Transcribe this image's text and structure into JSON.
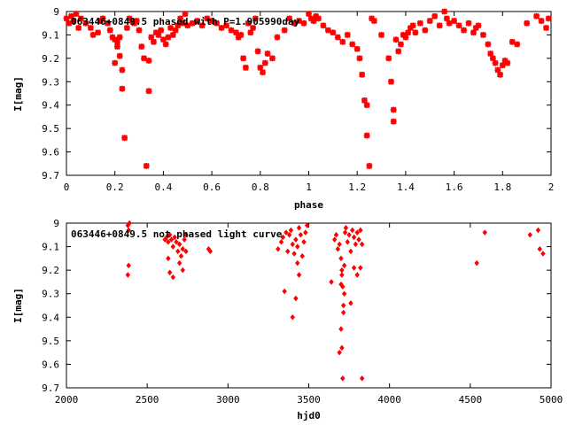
{
  "colors": {
    "points": "#ff0000",
    "axes": "#000000",
    "background": "#ffffff"
  },
  "chart_data": [
    {
      "type": "scatter",
      "title": "063446+0849.5 phased with P=1.905990day",
      "xlabel": "phase",
      "ylabel": "I[mag]",
      "xlim": [
        0,
        2
      ],
      "ylim": [
        9.7,
        9.0
      ],
      "xticks": [
        0,
        0.2,
        0.4,
        0.6,
        0.8,
        1,
        1.2,
        1.4,
        1.6,
        1.8,
        2
      ],
      "xtick_labels": [
        "0",
        "0.2",
        "0.4",
        "0.6",
        "0.8",
        "1",
        "1.2",
        "1.4",
        "1.6",
        "1.8",
        "2"
      ],
      "yticks": [
        9.0,
        9.1,
        9.2,
        9.3,
        9.4,
        9.5,
        9.6,
        9.7
      ],
      "ytick_labels": [
        "9",
        "9.1",
        "9.2",
        "9.3",
        "9.4",
        "9.5",
        "9.6",
        "9.7"
      ],
      "marker": "star",
      "x": [
        0.0,
        0.01,
        0.02,
        0.03,
        0.04,
        0.05,
        0.06,
        0.08,
        0.1,
        0.11,
        0.13,
        0.14,
        0.15,
        0.17,
        0.18,
        0.19,
        0.2,
        0.2,
        0.21,
        0.21,
        0.22,
        0.22,
        0.23,
        0.23,
        0.24,
        0.25,
        0.26,
        0.27,
        0.28,
        0.29,
        0.3,
        0.31,
        0.32,
        0.33,
        0.34,
        0.34,
        0.35,
        0.36,
        0.37,
        0.38,
        0.39,
        0.4,
        0.41,
        0.42,
        0.43,
        0.44,
        0.45,
        0.46,
        0.47,
        0.48,
        0.49,
        0.5,
        0.52,
        0.54,
        0.56,
        0.58,
        0.6,
        0.62,
        0.64,
        0.66,
        0.68,
        0.7,
        0.71,
        0.72,
        0.73,
        0.74,
        0.75,
        0.76,
        0.77,
        0.78,
        0.79,
        0.8,
        0.81,
        0.82,
        0.83,
        0.85,
        0.87,
        0.9,
        0.92,
        0.94,
        0.96,
        0.98,
        1.0,
        1.01,
        1.02,
        1.03,
        1.04,
        1.06,
        1.08,
        1.1,
        1.12,
        1.14,
        1.16,
        1.18,
        1.2,
        1.21,
        1.22,
        1.23,
        1.24,
        1.24,
        1.25,
        1.26,
        1.27,
        1.3,
        1.33,
        1.34,
        1.35,
        1.35,
        1.36,
        1.37,
        1.38,
        1.39,
        1.4,
        1.41,
        1.42,
        1.43,
        1.44,
        1.46,
        1.48,
        1.5,
        1.52,
        1.54,
        1.56,
        1.57,
        1.58,
        1.6,
        1.62,
        1.64,
        1.66,
        1.68,
        1.69,
        1.7,
        1.72,
        1.74,
        1.75,
        1.76,
        1.77,
        1.78,
        1.79,
        1.8,
        1.81,
        1.82,
        1.84,
        1.86,
        1.9,
        1.94,
        1.96,
        1.98,
        1.99
      ],
      "y": [
        9.03,
        9.05,
        9.02,
        9.04,
        9.01,
        9.07,
        9.03,
        9.05,
        9.07,
        9.1,
        9.09,
        9.04,
        9.03,
        9.05,
        9.08,
        9.11,
        9.12,
        9.22,
        9.13,
        9.15,
        9.11,
        9.19,
        9.25,
        9.33,
        9.54,
        9.07,
        9.03,
        9.04,
        9.05,
        9.04,
        9.08,
        9.15,
        9.2,
        9.66,
        9.21,
        9.34,
        9.11,
        9.13,
        9.09,
        9.1,
        9.08,
        9.12,
        9.14,
        9.11,
        9.07,
        9.1,
        9.08,
        9.06,
        9.03,
        9.05,
        9.01,
        9.06,
        9.05,
        9.04,
        9.06,
        9.03,
        9.04,
        9.05,
        9.07,
        9.06,
        9.08,
        9.09,
        9.11,
        9.1,
        9.2,
        9.24,
        9.05,
        9.09,
        9.07,
        9.03,
        9.17,
        9.24,
        9.26,
        9.22,
        9.18,
        9.2,
        9.11,
        9.08,
        9.03,
        9.05,
        9.04,
        9.05,
        9.01,
        9.03,
        9.04,
        9.02,
        9.03,
        9.06,
        9.08,
        9.09,
        9.11,
        9.13,
        9.1,
        9.14,
        9.16,
        9.2,
        9.27,
        9.38,
        9.4,
        9.53,
        9.66,
        9.03,
        9.04,
        9.1,
        9.2,
        9.3,
        9.42,
        9.47,
        9.12,
        9.17,
        9.14,
        9.1,
        9.11,
        9.09,
        9.07,
        9.06,
        9.09,
        9.05,
        9.08,
        9.04,
        9.02,
        9.06,
        9.0,
        9.03,
        9.05,
        9.04,
        9.06,
        9.08,
        9.05,
        9.09,
        9.07,
        9.06,
        9.1,
        9.14,
        9.18,
        9.2,
        9.22,
        9.25,
        9.27,
        9.23,
        9.21,
        9.22,
        9.13,
        9.14,
        9.05,
        9.02,
        9.04,
        9.07,
        9.03
      ],
      "points_name": "phased-point"
    },
    {
      "type": "scatter",
      "title": "063446+0849.5 not phased light curve",
      "xlabel": "hjd0",
      "ylabel": "I[mag]",
      "xlim": [
        2000,
        5000
      ],
      "ylim": [
        9.7,
        9.0
      ],
      "xticks": [
        2000,
        2500,
        3000,
        3500,
        4000,
        4500,
        5000
      ],
      "xtick_labels": [
        "2000",
        "2500",
        "3000",
        "3500",
        "4000",
        "4500",
        "5000"
      ],
      "yticks": [
        9.0,
        9.1,
        9.2,
        9.3,
        9.4,
        9.5,
        9.6,
        9.7
      ],
      "ytick_labels": [
        "9",
        "9.1",
        "9.2",
        "9.3",
        "9.4",
        "9.5",
        "9.6",
        "9.7"
      ],
      "marker": "diamond",
      "x": [
        2380,
        2385,
        2390,
        2385,
        2380,
        2610,
        2620,
        2630,
        2640,
        2650,
        2660,
        2670,
        2680,
        2690,
        2700,
        2710,
        2720,
        2730,
        2740,
        2630,
        2640,
        2660,
        2700,
        2720,
        2740,
        2880,
        2890,
        3310,
        3330,
        3340,
        3360,
        3370,
        3380,
        3390,
        3400,
        3410,
        3420,
        3430,
        3440,
        3450,
        3460,
        3470,
        3480,
        3490,
        3350,
        3420,
        3430,
        3440,
        3400,
        3640,
        3660,
        3670,
        3680,
        3690,
        3700,
        3705,
        3710,
        3715,
        3720,
        3725,
        3730,
        3740,
        3750,
        3760,
        3770,
        3780,
        3790,
        3800,
        3810,
        3820,
        3830,
        3700,
        3705,
        3710,
        3715,
        3720,
        3700,
        3705,
        3690,
        3760,
        3780,
        3800,
        3820,
        3830,
        4540,
        4590,
        4870,
        4920,
        4930,
        4950
      ],
      "y": [
        9.01,
        9.03,
        9.0,
        9.18,
        9.22,
        9.07,
        9.06,
        9.08,
        9.05,
        9.07,
        9.1,
        9.06,
        9.08,
        9.12,
        9.09,
        9.14,
        9.11,
        9.07,
        9.05,
        9.15,
        9.21,
        9.23,
        9.17,
        9.2,
        9.12,
        9.11,
        9.12,
        9.11,
        9.08,
        9.06,
        9.04,
        9.12,
        9.05,
        9.03,
        9.09,
        9.13,
        9.07,
        9.1,
        9.02,
        9.05,
        9.14,
        9.08,
        9.04,
        9.01,
        9.29,
        9.32,
        9.17,
        9.22,
        9.4,
        9.25,
        9.07,
        9.05,
        9.11,
        9.09,
        9.15,
        9.2,
        9.27,
        9.35,
        9.18,
        9.04,
        9.02,
        9.08,
        9.05,
        9.12,
        9.03,
        9.06,
        9.09,
        9.04,
        9.07,
        9.03,
        9.09,
        9.45,
        9.53,
        9.66,
        9.38,
        9.3,
        9.26,
        9.22,
        9.55,
        9.34,
        9.19,
        9.22,
        9.19,
        9.66,
        9.17,
        9.04,
        9.05,
        9.03,
        9.11,
        9.13
      ],
      "points_name": "unphased-point"
    }
  ]
}
